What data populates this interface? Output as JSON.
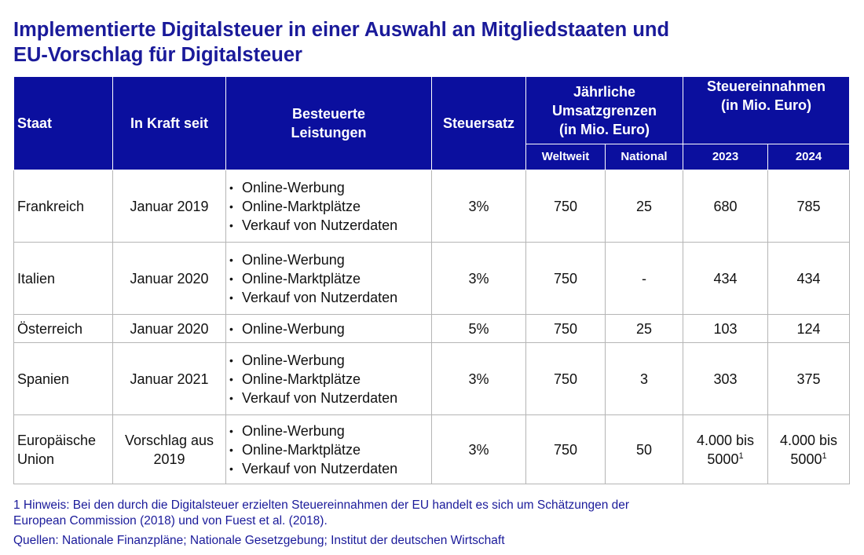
{
  "title": {
    "line1": "Implementierte Digitalsteuer in einer Auswahl an Mitgliedstaaten und",
    "line2": "EU-Vorschlag für Digitalsteuer"
  },
  "headers": {
    "staat": "Staat",
    "in_kraft": "In Kraft seit",
    "leistungen_line1": "Besteuerte",
    "leistungen_line2": "Leistungen",
    "steuersatz": "Steuersatz",
    "umsatz_line1": "Jährliche",
    "umsatz_line2": "Umsatzgrenzen",
    "umsatz_line3": "(in Mio. Euro)",
    "einnahmen_line1": "Steuereinnahmen",
    "einnahmen_line2": "(in Mio. Euro)",
    "weltweit": "Weltweit",
    "national": "National",
    "y2023": "2023",
    "y2024": "2024"
  },
  "rows": [
    {
      "staat": "Frankreich",
      "in_kraft": "Januar 2019",
      "leistungen": [
        "Online-Werbung",
        "Online-Marktplätze",
        "Verkauf von Nutzerdaten"
      ],
      "steuersatz": "3%",
      "weltweit": "750",
      "national": "25",
      "y2023": "680",
      "y2024": "785"
    },
    {
      "staat": "Italien",
      "in_kraft": "Januar 2020",
      "leistungen": [
        "Online-Werbung",
        "Online-Marktplätze",
        "Verkauf von Nutzerdaten"
      ],
      "steuersatz": "3%",
      "weltweit": "750",
      "national": "-",
      "y2023": "434",
      "y2024": "434"
    },
    {
      "staat": "Österreich",
      "in_kraft": "Januar 2020",
      "leistungen": [
        "Online-Werbung"
      ],
      "steuersatz": "5%",
      "weltweit": "750",
      "national": "25",
      "y2023": "103",
      "y2024": "124"
    },
    {
      "staat": "Spanien",
      "in_kraft": "Januar 2021",
      "leistungen": [
        "Online-Werbung",
        "Online-Marktplätze",
        "Verkauf von Nutzerdaten"
      ],
      "steuersatz": "3%",
      "weltweit": "750",
      "national": "3",
      "y2023": "303",
      "y2024": "375"
    },
    {
      "staat_line1": "Europäische",
      "staat_line2": "Union",
      "in_kraft_line1": "Vorschlag aus",
      "in_kraft_line2": "2019",
      "leistungen": [
        "Online-Werbung",
        "Online-Marktplätze",
        "Verkauf von Nutzerdaten"
      ],
      "steuersatz": "3%",
      "weltweit": "750",
      "national": "50",
      "y2023_line1": "4.000 bis",
      "y2023_line2": "5000",
      "y2024_line1": "4.000 bis",
      "y2024_line2": "5000",
      "footnote_mark": "1"
    }
  ],
  "notes": {
    "hinweis_line1": "1 Hinweis: Bei den durch die Digitalsteuer erzielten Steuereinnahmen der EU handelt es sich um Schätzungen der",
    "hinweis_line2": "European Commission (2018) und von Fuest et al. (2018).",
    "quellen": "Quellen: Nationale Finanzpläne; Nationale Gesetzgebung; Institut der deutschen Wirtschaft"
  }
}
